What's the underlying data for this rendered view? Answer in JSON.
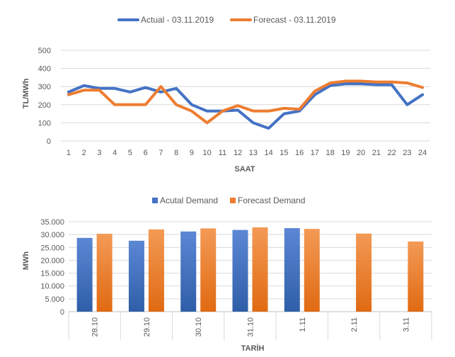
{
  "chart_data": [
    {
      "type": "line",
      "title": "",
      "xlabel": "SAAT",
      "ylabel": "TL/MWh",
      "ylim": [
        0,
        500
      ],
      "yticks": [
        "0",
        "100",
        "200",
        "300",
        "400",
        "500"
      ],
      "categories": [
        "1",
        "2",
        "3",
        "4",
        "5",
        "6",
        "7",
        "8",
        "9",
        "10",
        "11",
        "12",
        "13",
        "14",
        "15",
        "16",
        "17",
        "18",
        "19",
        "20",
        "21",
        "22",
        "23",
        "24"
      ],
      "grid": true,
      "legend_position": "top",
      "series": [
        {
          "name": "Actual - 03.11.2019",
          "color": "#4472C4",
          "values": [
            270,
            305,
            290,
            290,
            270,
            295,
            270,
            290,
            200,
            165,
            165,
            170,
            100,
            70,
            150,
            165,
            255,
            305,
            315,
            315,
            310,
            310,
            200,
            255
          ]
        },
        {
          "name": "Forecast - 03.11.2019",
          "color": "#ED7D31",
          "values": [
            255,
            280,
            280,
            200,
            200,
            200,
            300,
            200,
            165,
            100,
            165,
            195,
            165,
            165,
            180,
            175,
            275,
            320,
            330,
            330,
            325,
            325,
            320,
            295
          ]
        }
      ]
    },
    {
      "type": "bar",
      "title": "",
      "xlabel": "TARİH",
      "ylabel": "MWh",
      "ylim": [
        0,
        35000
      ],
      "yticks": [
        "0",
        "5.000",
        "10.000",
        "15.000",
        "20.000",
        "25.000",
        "30.000",
        "35.000"
      ],
      "categories": [
        "28.10",
        "29.10",
        "30.10",
        "31.10",
        "1.11",
        "2.11",
        "3.11"
      ],
      "grid": true,
      "legend_position": "top",
      "series": [
        {
          "name": "Acutal Demand",
          "color": "#4472C4",
          "values": [
            28700,
            27600,
            31200,
            31800,
            32500,
            null,
            null
          ]
        },
        {
          "name": "Forecast Demand",
          "color": "#ED7D31",
          "values": [
            30300,
            32000,
            32400,
            32800,
            32200,
            30400,
            27300
          ]
        }
      ]
    }
  ]
}
